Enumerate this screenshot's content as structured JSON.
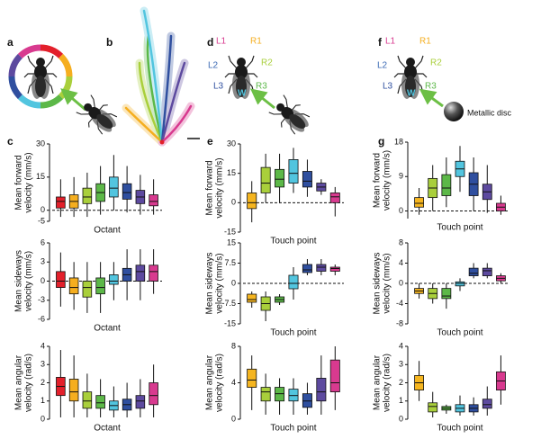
{
  "panel_labels": {
    "a": "a",
    "b": "b",
    "c": "c",
    "d": "d",
    "e": "e",
    "f": "f",
    "g": "g"
  },
  "diagram_d": {
    "legs": [
      "L1",
      "R1",
      "L2",
      "R2",
      "L3",
      "R3"
    ],
    "wing": "W"
  },
  "diagram_f": {
    "legs": [
      "L1",
      "R1",
      "L2",
      "R2",
      "L3",
      "R3"
    ],
    "wing": "W",
    "disc": "Metallic disc"
  },
  "chart_data": [
    {
      "type": "box",
      "xlabel": "Octant",
      "ylabel": [
        "Mean forward",
        "velocity (mm/s)"
      ],
      "ylim": [
        -5,
        30
      ],
      "yticks": [
        -5,
        0,
        15,
        30
      ],
      "zero_line": true,
      "categories": [
        null,
        null,
        null,
        null,
        null,
        null,
        null,
        null
      ],
      "boxes": [
        {
          "color": "#e3202b",
          "min": -3,
          "q1": 1,
          "median": 4,
          "q3": 6,
          "max": 14
        },
        {
          "color": "#f5ae1f",
          "min": -3,
          "q1": 1,
          "median": 4,
          "q3": 7,
          "max": 15
        },
        {
          "color": "#a9cf3b",
          "min": -3,
          "q1": 3,
          "median": 6,
          "q3": 10,
          "max": 17
        },
        {
          "color": "#5cb848",
          "min": -2,
          "q1": 4,
          "median": 8,
          "q3": 12,
          "max": 20
        },
        {
          "color": "#52c5df",
          "min": 0,
          "q1": 6,
          "median": 10,
          "q3": 15,
          "max": 25
        },
        {
          "color": "#2f4f9f",
          "min": -1,
          "q1": 5,
          "median": 8,
          "q3": 12,
          "max": 20
        },
        {
          "color": "#5d4a9f",
          "min": -2,
          "q1": 3,
          "median": 6,
          "q3": 9,
          "max": 16
        },
        {
          "color": "#d83a8f",
          "min": -2,
          "q1": 2,
          "median": 4,
          "q3": 7,
          "max": 14
        }
      ]
    },
    {
      "type": "box",
      "xlabel": "Octant",
      "ylabel": [
        "Mean sideways",
        "velocity (mm/s)"
      ],
      "ylim": [
        -6,
        6
      ],
      "yticks": [
        -6,
        -3,
        0,
        3,
        6
      ],
      "zero_line": true,
      "categories": [
        null,
        null,
        null,
        null,
        null,
        null,
        null,
        null
      ],
      "boxes": [
        {
          "color": "#e3202b",
          "min": -4,
          "q1": -1,
          "median": 0,
          "q3": 1.5,
          "max": 4.5
        },
        {
          "color": "#f5ae1f",
          "min": -4.5,
          "q1": -2,
          "median": -1,
          "q3": 0.5,
          "max": 3
        },
        {
          "color": "#a9cf3b",
          "min": -5,
          "q1": -2.5,
          "median": -1,
          "q3": 0,
          "max": 3
        },
        {
          "color": "#5cb848",
          "min": -5,
          "q1": -2,
          "median": -1,
          "q3": 0.5,
          "max": 3
        },
        {
          "color": "#52c5df",
          "min": -3,
          "q1": -0.5,
          "median": 0,
          "q3": 1,
          "max": 3
        },
        {
          "color": "#2f4f9f",
          "min": -3,
          "q1": 0,
          "median": 1,
          "q3": 2,
          "max": 5
        },
        {
          "color": "#5d4a9f",
          "min": -3,
          "q1": 0,
          "median": 1.5,
          "q3": 2.5,
          "max": 5
        },
        {
          "color": "#d83a8f",
          "min": -2,
          "q1": 0,
          "median": 1.5,
          "q3": 2.5,
          "max": 5
        }
      ]
    },
    {
      "type": "box",
      "xlabel": "Octant",
      "ylabel": [
        "Mean angular",
        "velocity (rad/s)"
      ],
      "ylim": [
        0,
        4
      ],
      "yticks": [
        0,
        1,
        2,
        3,
        4
      ],
      "zero_line": false,
      "categories": [
        null,
        null,
        null,
        null,
        null,
        null,
        null,
        null
      ],
      "boxes": [
        {
          "color": "#e3202b",
          "min": 0.1,
          "q1": 1.3,
          "median": 1.8,
          "q3": 2.3,
          "max": 3.8
        },
        {
          "color": "#f5ae1f",
          "min": 0.1,
          "q1": 1,
          "median": 1.5,
          "q3": 2.2,
          "max": 3.5
        },
        {
          "color": "#a9cf3b",
          "min": 0.1,
          "q1": 0.6,
          "median": 1,
          "q3": 1.5,
          "max": 2.5
        },
        {
          "color": "#5cb848",
          "min": 0.1,
          "q1": 0.6,
          "median": 0.9,
          "q3": 1.3,
          "max": 2.2
        },
        {
          "color": "#52c5df",
          "min": 0.1,
          "q1": 0.5,
          "median": 0.75,
          "q3": 1,
          "max": 1.8
        },
        {
          "color": "#2f4f9f",
          "min": 0.1,
          "q1": 0.5,
          "median": 0.8,
          "q3": 1.1,
          "max": 2
        },
        {
          "color": "#5d4a9f",
          "min": 0.1,
          "q1": 0.6,
          "median": 1,
          "q3": 1.3,
          "max": 2.2
        },
        {
          "color": "#d83a8f",
          "min": 0.1,
          "q1": 0.8,
          "median": 1.3,
          "q3": 2,
          "max": 3
        }
      ]
    },
    {
      "type": "box",
      "xlabel": "Touch point",
      "ylabel": [
        "Mean forward",
        "velocity (mm/s)"
      ],
      "ylim": [
        -15,
        30
      ],
      "yticks": [
        -15,
        0,
        15,
        30
      ],
      "zero_line": true,
      "categories": [
        null,
        null,
        null,
        null,
        null,
        null,
        null
      ],
      "boxes": [
        {
          "color": "#f5b51f",
          "min": -10,
          "q1": -3,
          "median": 0,
          "q3": 5,
          "max": 11
        },
        {
          "color": "#a9cf3b",
          "min": 0,
          "q1": 5,
          "median": 10,
          "q3": 18,
          "max": 25
        },
        {
          "color": "#5cb848",
          "min": 0,
          "q1": 8,
          "median": 12,
          "q3": 17,
          "max": 25
        },
        {
          "color": "#52c5df",
          "min": 5,
          "q1": 10,
          "median": 15,
          "q3": 22,
          "max": 28
        },
        {
          "color": "#2f4f9f",
          "min": 3,
          "q1": 8,
          "median": 11,
          "q3": 16,
          "max": 22
        },
        {
          "color": "#5d4a9f",
          "min": 4,
          "q1": 6,
          "median": 8,
          "q3": 10,
          "max": 12
        },
        {
          "color": "#d83a8f",
          "min": -7,
          "q1": 0,
          "median": 3,
          "q3": 5,
          "max": 8
        }
      ]
    },
    {
      "type": "box",
      "xlabel": "Touch point",
      "ylabel": [
        "Mean sideways",
        "velocity (mm/s)"
      ],
      "ylim": [
        -15,
        15
      ],
      "yticks": [
        -15,
        -7.5,
        0,
        7.5,
        15
      ],
      "zero_line": true,
      "categories": [
        null,
        null,
        null,
        null,
        null,
        null,
        null
      ],
      "boxes": [
        {
          "color": "#f5b51f",
          "min": -9,
          "q1": -7,
          "median": -6,
          "q3": -4,
          "max": -3
        },
        {
          "color": "#a9cf3b",
          "min": -14,
          "q1": -10,
          "median": -7.5,
          "q3": -5,
          "max": -3
        },
        {
          "color": "#5cb848",
          "min": -8,
          "q1": -7,
          "median": -6,
          "q3": -5,
          "max": -4
        },
        {
          "color": "#52c5df",
          "min": -6,
          "q1": -2,
          "median": 0,
          "q3": 3,
          "max": 6
        },
        {
          "color": "#2f4f9f",
          "min": 3,
          "q1": 4,
          "median": 5,
          "q3": 7,
          "max": 9
        },
        {
          "color": "#5d4a9f",
          "min": 3,
          "q1": 4.5,
          "median": 6,
          "q3": 7,
          "max": 9
        },
        {
          "color": "#d83a8f",
          "min": 3,
          "q1": 4.5,
          "median": 5.5,
          "q3": 6,
          "max": 7
        }
      ]
    },
    {
      "type": "box",
      "xlabel": "Touch point",
      "ylabel": [
        "Mean angular",
        "velocity (rad/s)"
      ],
      "ylim": [
        0,
        8
      ],
      "yticks": [
        0,
        4,
        8
      ],
      "zero_line": false,
      "categories": [
        null,
        null,
        null,
        null,
        null,
        null,
        null
      ],
      "boxes": [
        {
          "color": "#f5b51f",
          "min": 1,
          "q1": 3.5,
          "median": 4.3,
          "q3": 5.5,
          "max": 7
        },
        {
          "color": "#a9cf3b",
          "min": 0.5,
          "q1": 2,
          "median": 3,
          "q3": 3.5,
          "max": 5
        },
        {
          "color": "#5cb848",
          "min": 0.5,
          "q1": 2,
          "median": 2.8,
          "q3": 3.5,
          "max": 4.5
        },
        {
          "color": "#52c5df",
          "min": 0.5,
          "q1": 2,
          "median": 2.6,
          "q3": 3.3,
          "max": 4.5
        },
        {
          "color": "#2f4f9f",
          "min": 0.5,
          "q1": 1.3,
          "median": 2,
          "q3": 2.8,
          "max": 4
        },
        {
          "color": "#5d4a9f",
          "min": 0.5,
          "q1": 2,
          "median": 3,
          "q3": 4.5,
          "max": 7
        },
        {
          "color": "#d83a8f",
          "min": 1,
          "q1": 3,
          "median": 4,
          "q3": 6.5,
          "max": 8
        }
      ]
    },
    {
      "type": "box",
      "xlabel": "Touch point",
      "ylabel": [
        "Mean forward",
        "velocity (mm/s)"
      ],
      "ylim": [
        -2,
        18
      ],
      "yticks": [
        0,
        9,
        18
      ],
      "zero_line": true,
      "categories": [
        null,
        null,
        null,
        null,
        null,
        null,
        null
      ],
      "boxes": [
        {
          "color": "#f5b51f",
          "min": -1,
          "q1": 1,
          "median": 2,
          "q3": 3.5,
          "max": 6
        },
        {
          "color": "#a9cf3b",
          "min": 0,
          "q1": 3.5,
          "median": 6,
          "q3": 8.5,
          "max": 12
        },
        {
          "color": "#5cb848",
          "min": 1,
          "q1": 4,
          "median": 6,
          "q3": 9.5,
          "max": 14
        },
        {
          "color": "#52c5df",
          "min": 5,
          "q1": 9,
          "median": 11,
          "q3": 13,
          "max": 17
        },
        {
          "color": "#2f4f9f",
          "min": 0,
          "q1": 4,
          "median": 7,
          "q3": 10,
          "max": 14
        },
        {
          "color": "#5d4a9f",
          "min": -0.5,
          "q1": 3,
          "median": 5,
          "q3": 7,
          "max": 12
        },
        {
          "color": "#d83a8f",
          "min": -1,
          "q1": 0,
          "median": 1,
          "q3": 2,
          "max": 4
        }
      ]
    },
    {
      "type": "box",
      "xlabel": "Touch point",
      "ylabel": [
        "Mean sideways",
        "velocity (mm/s)"
      ],
      "ylim": [
        -8,
        8
      ],
      "yticks": [
        -8,
        -4,
        0,
        4,
        8
      ],
      "zero_line": true,
      "categories": [
        null,
        null,
        null,
        null,
        null,
        null,
        null
      ],
      "boxes": [
        {
          "color": "#f5b51f",
          "min": -3,
          "q1": -2,
          "median": -1.5,
          "q3": -1,
          "max": 0
        },
        {
          "color": "#a9cf3b",
          "min": -4,
          "q1": -3,
          "median": -2,
          "q3": -1,
          "max": 0
        },
        {
          "color": "#5cb848",
          "min": -5,
          "q1": -3,
          "median": -2.5,
          "q3": -1,
          "max": 0
        },
        {
          "color": "#52c5df",
          "min": -1.5,
          "q1": -0.5,
          "median": 0,
          "q3": 0.3,
          "max": 1
        },
        {
          "color": "#2f4f9f",
          "min": 1,
          "q1": 1.5,
          "median": 2,
          "q3": 3,
          "max": 4
        },
        {
          "color": "#5d4a9f",
          "min": 1,
          "q1": 1.5,
          "median": 2.5,
          "q3": 3,
          "max": 4
        },
        {
          "color": "#d83a8f",
          "min": 0,
          "q1": 0.5,
          "median": 1,
          "q3": 1.5,
          "max": 2
        }
      ]
    },
    {
      "type": "box",
      "xlabel": "Touch point",
      "ylabel": [
        "Mean angular",
        "velocity (rad/s)"
      ],
      "ylim": [
        0,
        4
      ],
      "yticks": [
        0,
        1,
        2,
        3,
        4
      ],
      "zero_line": false,
      "categories": [
        null,
        null,
        null,
        null,
        null,
        null,
        null
      ],
      "boxes": [
        {
          "color": "#f5b51f",
          "min": 1,
          "q1": 1.6,
          "median": 2,
          "q3": 2.4,
          "max": 3.2
        },
        {
          "color": "#a9cf3b",
          "min": 0.1,
          "q1": 0.4,
          "median": 0.7,
          "q3": 0.9,
          "max": 1.5
        },
        {
          "color": "#5cb848",
          "min": 0.3,
          "q1": 0.5,
          "median": 0.6,
          "q3": 0.7,
          "max": 0.8
        },
        {
          "color": "#52c5df",
          "min": 0.2,
          "q1": 0.4,
          "median": 0.6,
          "q3": 0.8,
          "max": 1.3
        },
        {
          "color": "#2f4f9f",
          "min": 0.2,
          "q1": 0.4,
          "median": 0.6,
          "q3": 0.8,
          "max": 1.2
        },
        {
          "color": "#5d4a9f",
          "min": 0.2,
          "q1": 0.6,
          "median": 0.8,
          "q3": 1.1,
          "max": 1.8
        },
        {
          "color": "#d83a8f",
          "min": 0.8,
          "q1": 1.6,
          "median": 2.1,
          "q3": 2.6,
          "max": 3.5
        }
      ]
    }
  ]
}
